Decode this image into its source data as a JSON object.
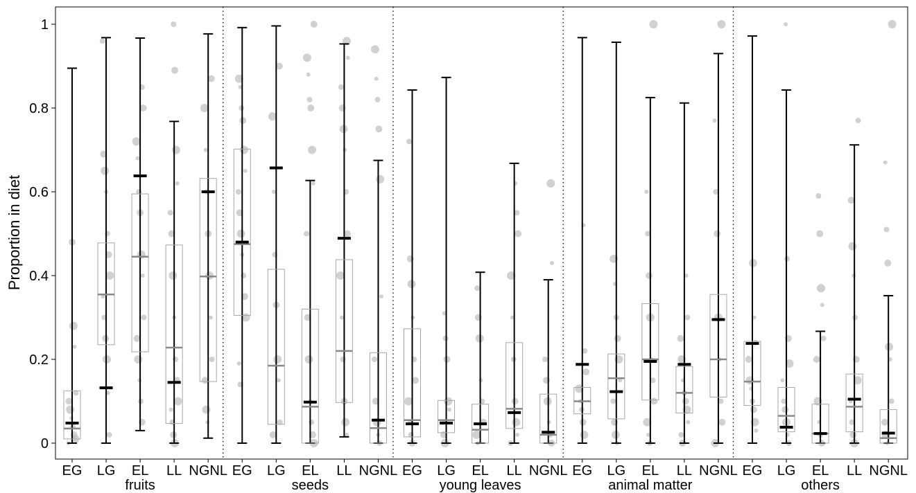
{
  "chart_data": {
    "type": "box",
    "ylabel": "Proportion in diet",
    "xlabel": "",
    "ylim": [
      -0.04,
      1.04
    ],
    "yticks": [
      0,
      0.2,
      0.4,
      0.6,
      0.8,
      1
    ],
    "ytick_labels": [
      "0",
      "0.2",
      "0.4",
      "0.6",
      "0.8",
      "1"
    ],
    "subgroups": [
      "EG",
      "LG",
      "EL",
      "LL",
      "NGNL"
    ],
    "groups": [
      {
        "label": "fruits",
        "subgroups": [
          {
            "label": "EG",
            "box": [
              0.01,
              0.035,
              0.125
            ],
            "mean": 0.048,
            "whisker": [
              0,
              0.895
            ],
            "points": [
              0,
              0.01,
              0.02,
              0.04,
              0.06,
              0.08,
              0.1,
              0.12,
              0.23,
              0.28,
              0.48
            ]
          },
          {
            "label": "LG",
            "box": [
              0.235,
              0.355,
              0.478
            ],
            "mean": 0.132,
            "whisker": [
              0,
              0.968
            ],
            "points": [
              0.02,
              0.12,
              0.2,
              0.25,
              0.3,
              0.35,
              0.4,
              0.45,
              0.5,
              0.6,
              0.65,
              0.69,
              0.96
            ]
          },
          {
            "label": "EL",
            "box": [
              0.218,
              0.445,
              0.595
            ],
            "mean": 0.638,
            "whisker": [
              0.03,
              0.967
            ],
            "points": [
              0.05,
              0.1,
              0.15,
              0.2,
              0.25,
              0.3,
              0.4,
              0.45,
              0.55,
              0.6,
              0.68,
              0.72,
              0.8,
              0.85
            ]
          },
          {
            "label": "LL",
            "box": [
              0.047,
              0.228,
              0.473
            ],
            "mean": 0.145,
            "whisker": [
              0,
              0.768
            ],
            "points": [
              0,
              0.02,
              0.05,
              0.08,
              0.1,
              0.15,
              0.2,
              0.3,
              0.4,
              0.5,
              0.55,
              0.62,
              0.7,
              0.89,
              1
            ]
          },
          {
            "label": "NGNL",
            "box": [
              0.147,
              0.398,
              0.632
            ],
            "mean": 0.6,
            "whisker": [
              0.012,
              0.977
            ],
            "points": [
              0.05,
              0.08,
              0.15,
              0.2,
              0.3,
              0.4,
              0.5,
              0.6,
              0.7,
              0.8,
              0.87
            ]
          }
        ]
      },
      {
        "label": "seeds",
        "subgroups": [
          {
            "label": "EG",
            "box": [
              0.305,
              0.475,
              0.702
            ],
            "mean": 0.48,
            "whisker": [
              0,
              0.992
            ],
            "points": [
              0.14,
              0.19,
              0.3,
              0.35,
              0.4,
              0.45,
              0.5,
              0.55,
              0.6,
              0.65,
              0.7,
              0.77,
              0.8,
              0.85,
              0.87
            ]
          },
          {
            "label": "LG",
            "box": [
              0.045,
              0.185,
              0.415
            ],
            "mean": 0.657,
            "whisker": [
              0,
              0.996
            ],
            "points": [
              0.02,
              0.05,
              0.15,
              0.2,
              0.33,
              0.45,
              0.6,
              0.78,
              0.9
            ]
          },
          {
            "label": "EL",
            "box": [
              0,
              0.087,
              0.32
            ],
            "mean": 0.098,
            "whisker": [
              0,
              0.627
            ],
            "points": [
              0,
              0.02,
              0.05,
              0.1,
              0.2,
              0.3,
              0.5,
              0.62,
              0.7,
              0.8,
              0.82,
              0.88,
              0.92,
              1
            ]
          },
          {
            "label": "LL",
            "box": [
              0.097,
              0.22,
              0.438
            ],
            "mean": 0.489,
            "whisker": [
              0.015,
              0.953
            ],
            "points": [
              0.02,
              0.05,
              0.1,
              0.2,
              0.3,
              0.4,
              0.5,
              0.6,
              0.7,
              0.75,
              0.8,
              0.85,
              0.92,
              0.96
            ]
          },
          {
            "label": "NGNL",
            "box": [
              0,
              0.036,
              0.216
            ],
            "mean": 0.055,
            "whisker": [
              0,
              0.675
            ],
            "points": [
              0,
              0.02,
              0.05,
              0.1,
              0.2,
              0.35,
              0.63,
              0.75,
              0.82,
              0.87,
              0.94
            ]
          }
        ]
      },
      {
        "label": "young leaves",
        "subgroups": [
          {
            "label": "EG",
            "box": [
              0.015,
              0.055,
              0.273
            ],
            "mean": 0.046,
            "whisker": [
              0,
              0.843
            ],
            "points": [
              0,
              0.02,
              0.05,
              0.1,
              0.15,
              0.2,
              0.3,
              0.38,
              0.44,
              0.72
            ]
          },
          {
            "label": "LG",
            "box": [
              0.025,
              0.055,
              0.102
            ],
            "mean": 0.048,
            "whisker": [
              0,
              0.873
            ],
            "points": [
              0,
              0.02,
              0.05,
              0.08,
              0.1,
              0.2,
              0.25,
              0.31
            ]
          },
          {
            "label": "EL",
            "box": [
              0,
              0.032,
              0.093
            ],
            "mean": 0.046,
            "whisker": [
              0,
              0.408
            ],
            "points": [
              0,
              0.02,
              0.05,
              0.1,
              0.15,
              0.25,
              0.3,
              0.37
            ]
          },
          {
            "label": "LL",
            "box": [
              0.035,
              0.082,
              0.24
            ],
            "mean": 0.073,
            "whisker": [
              0,
              0.668
            ],
            "points": [
              0,
              0.02,
              0.05,
              0.1,
              0.2,
              0.3,
              0.4,
              0.5,
              0.55,
              0.62
            ]
          },
          {
            "label": "NGNL",
            "box": [
              0,
              0.02,
              0.117
            ],
            "mean": 0.026,
            "whisker": [
              0,
              0.39
            ],
            "points": [
              0,
              0.02,
              0.05,
              0.1,
              0.15,
              0.2,
              0.43,
              0.62
            ]
          }
        ]
      },
      {
        "label": "animal matter",
        "subgroups": [
          {
            "label": "EG",
            "box": [
              0.07,
              0.1,
              0.133
            ],
            "mean": 0.188,
            "whisker": [
              0,
              0.968
            ],
            "points": [
              0.02,
              0.05,
              0.08,
              0.1,
              0.13,
              0.17,
              0.22,
              0.52
            ]
          },
          {
            "label": "LG",
            "box": [
              0.058,
              0.155,
              0.213
            ],
            "mean": 0.123,
            "whisker": [
              0,
              0.957
            ],
            "points": [
              0,
              0.02,
              0.05,
              0.1,
              0.15,
              0.2,
              0.25,
              0.3,
              0.38,
              0.44
            ]
          },
          {
            "label": "EL",
            "box": [
              0.103,
              0.2,
              0.333
            ],
            "mean": 0.195,
            "whisker": [
              0,
              0.825
            ],
            "points": [
              0,
              0.02,
              0.05,
              0.1,
              0.15,
              0.2,
              0.3,
              0.4,
              0.5,
              0.6,
              1
            ]
          },
          {
            "label": "LL",
            "box": [
              0.072,
              0.12,
              0.183
            ],
            "mean": 0.188,
            "whisker": [
              0,
              0.812
            ],
            "points": [
              0,
              0.02,
              0.05,
              0.08,
              0.1,
              0.12,
              0.15,
              0.2,
              0.25,
              0.3,
              0.4
            ]
          },
          {
            "label": "NGNL",
            "box": [
              0.11,
              0.2,
              0.355
            ],
            "mean": 0.295,
            "whisker": [
              0,
              0.93
            ],
            "points": [
              0,
              0.05,
              0.1,
              0.2,
              0.3,
              0.5,
              0.6,
              0.77,
              1
            ]
          }
        ]
      },
      {
        "label": "others",
        "subgroups": [
          {
            "label": "EG",
            "box": [
              0.09,
              0.147,
              0.243
            ],
            "mean": 0.238,
            "whisker": [
              0,
              0.972
            ],
            "points": [
              0.03,
              0.05,
              0.08,
              0.1,
              0.13,
              0.15,
              0.2,
              0.24,
              0.3,
              0.43
            ]
          },
          {
            "label": "LG",
            "box": [
              0.027,
              0.065,
              0.133
            ],
            "mean": 0.038,
            "whisker": [
              0,
              0.843
            ],
            "points": [
              0,
              0.02,
              0.05,
              0.08,
              0.1,
              0.15,
              0.19,
              0.25,
              0.44,
              1
            ]
          },
          {
            "label": "EL",
            "box": [
              0,
              0.023,
              0.093
            ],
            "mean": 0.023,
            "whisker": [
              0,
              0.267
            ],
            "points": [
              0,
              0.02,
              0.05,
              0.1,
              0.2,
              0.25,
              0.33,
              0.37,
              0.5,
              0.59
            ]
          },
          {
            "label": "LL",
            "box": [
              0.027,
              0.087,
              0.165
            ],
            "mean": 0.105,
            "whisker": [
              0,
              0.712
            ],
            "points": [
              0,
              0.02,
              0.05,
              0.1,
              0.15,
              0.2,
              0.3,
              0.4,
              0.47,
              0.58,
              0.77
            ]
          },
          {
            "label": "NGNL",
            "box": [
              0,
              0.012,
              0.08
            ],
            "mean": 0.024,
            "whisker": [
              0,
              0.352
            ],
            "points": [
              0,
              0.02,
              0.05,
              0.1,
              0.2,
              0.23,
              0.43,
              0.51,
              0.67,
              1
            ]
          }
        ]
      }
    ],
    "grid": false,
    "legend": "none",
    "colors": {
      "box_outline": "#a6a6a6",
      "median": "#888888",
      "mean": "#000000",
      "whisker": "#000000",
      "points": "#bdbdbd",
      "separator": "#000000"
    }
  }
}
